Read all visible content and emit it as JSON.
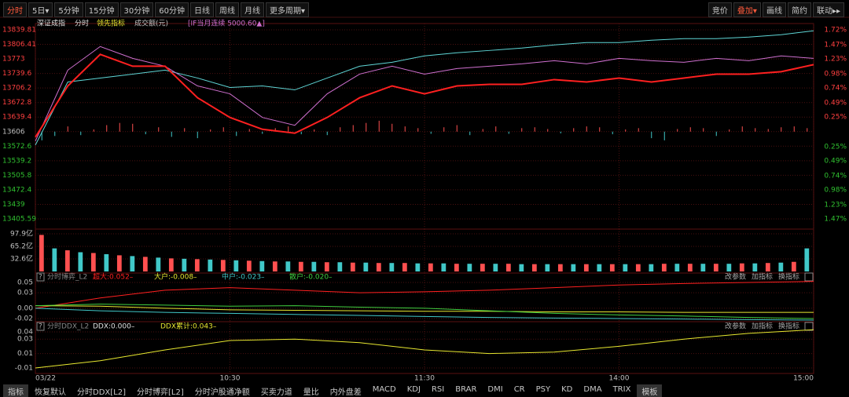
{
  "toolbar": {
    "left": [
      "分时",
      "5日▾",
      "5分钟",
      "15分钟",
      "30分钟",
      "60分钟",
      "日线",
      "周线",
      "月线",
      "更多周期▾"
    ],
    "right": [
      "竞价",
      "叠加▾",
      "画线",
      "简约",
      "联动▸▸"
    ]
  },
  "legend": [
    "深证成指",
    "分时",
    "领先指标",
    "成交额(元)",
    "[IF当月连续 5000.60▲]"
  ],
  "main": {
    "ylim": [
      13405.59,
      13839.81
    ],
    "yticks": [
      13839.81,
      13806.41,
      13773.0,
      13739.6,
      13706.2,
      13672.8,
      13639.4,
      13606.0,
      13572.6,
      13539.2,
      13505.8,
      13472.4,
      13439.0,
      13405.59
    ],
    "y2lim": [
      -1.47,
      1.72
    ],
    "y2ticks": [
      {
        "value": 1.72,
        "label": "1.72%"
      },
      {
        "value": 1.47,
        "label": "1.47%"
      },
      {
        "value": 1.23,
        "label": "1.23%"
      },
      {
        "value": 0.98,
        "label": "0.98%"
      },
      {
        "value": 0.74,
        "label": "0.74%"
      },
      {
        "value": 0.49,
        "label": "0.49%"
      },
      {
        "value": 0.25,
        "label": "0.25%"
      },
      {
        "value": -0.25,
        "label": "0.25%"
      },
      {
        "value": -0.49,
        "label": "0.49%"
      },
      {
        "value": -0.74,
        "label": "0.74%"
      },
      {
        "value": -0.98,
        "label": "0.98%"
      },
      {
        "value": -1.23,
        "label": "1.23%"
      },
      {
        "value": -1.47,
        "label": "1.47%"
      }
    ],
    "series": [
      {
        "color": "#5fd6d6",
        "width": 1,
        "values": [
          13575.2,
          13720.0,
          13729.1,
          13738.1,
          13747.2,
          13729.1,
          13707.4,
          13711.0,
          13701.9,
          13729.1,
          13756.2,
          13765.3,
          13779.8,
          13787.0,
          13792.4,
          13797.9,
          13805.1,
          13810.5,
          13810.5,
          13816.0,
          13819.6,
          13819.6,
          13823.2,
          13828.6,
          13837.6
        ]
      },
      {
        "color": "#d070d0",
        "width": 1,
        "values": [
          13584.3,
          13747.2,
          13801.5,
          13774.3,
          13756.2,
          13711.0,
          13692.9,
          13638.6,
          13620.5,
          13692.9,
          13738.1,
          13756.2,
          13738.1,
          13750.8,
          13756.2,
          13761.7,
          13768.9,
          13761.7,
          13774.3,
          13768.9,
          13765.3,
          13774.3,
          13768.9,
          13779.8,
          13774.3
        ]
      },
      {
        "color": "#ff2020",
        "width": 2,
        "values": [
          13593.3,
          13711.0,
          13783.4,
          13756.2,
          13756.2,
          13683.8,
          13638.6,
          13611.4,
          13602.4,
          13638.6,
          13683.8,
          13711.0,
          13692.9,
          13711.0,
          13714.6,
          13714.6,
          13725.5,
          13720.0,
          13729.1,
          13720.0,
          13729.1,
          13738.1,
          13738.1,
          13743.6,
          13759.9
        ]
      }
    ],
    "bars": [
      -20,
      -10,
      12,
      -8,
      5,
      15,
      20,
      18,
      -6,
      10,
      -12,
      8,
      -15,
      5,
      10,
      -10,
      6,
      -5,
      8,
      12,
      -6,
      5,
      -8,
      10,
      15,
      20,
      25,
      18,
      12,
      8,
      -5,
      10,
      15,
      -8,
      6,
      12,
      -5,
      8,
      10,
      6,
      -4,
      8,
      12,
      10,
      -6,
      5,
      8,
      -15,
      -20,
      6,
      10,
      8,
      -10,
      5,
      12,
      8,
      6,
      10,
      12,
      8
    ]
  },
  "volume": {
    "ylim": [
      0,
      97.9
    ],
    "yticks": [
      {
        "value": 97.9,
        "label": "97.9亿"
      },
      {
        "value": 65.2,
        "label": "65.2亿"
      },
      {
        "value": 32.6,
        "label": "32.6亿"
      }
    ],
    "values": [
      95,
      60,
      55,
      50,
      48,
      45,
      42,
      40,
      38,
      36,
      34,
      33,
      32,
      31,
      30,
      29,
      28,
      27,
      26,
      26,
      25,
      25,
      24,
      24,
      23,
      23,
      22,
      22,
      22,
      21,
      21,
      21,
      20,
      20,
      20,
      20,
      20,
      19,
      19,
      19,
      19,
      19,
      19,
      19,
      19,
      19,
      19,
      19,
      20,
      20,
      20,
      20,
      20,
      20,
      21,
      21,
      22,
      23,
      25,
      60
    ]
  },
  "game": {
    "title": "分时博弈_L2",
    "labels": [
      "超大:0.052–",
      "大户:-0.008–",
      "中户:-0.023–",
      "散户:-0.020–"
    ],
    "buttons": [
      "改参数",
      "加指标",
      "换指标"
    ],
    "ylim": [
      -0.02,
      0.05
    ],
    "yticks": [
      0.05,
      0.03,
      {
        "value": 0.0,
        "label": "0.00"
      },
      -0.02
    ],
    "series": [
      {
        "color": "#ff2020",
        "values": [
          0.0,
          0.02,
          0.035,
          0.04,
          0.035,
          0.03,
          0.032,
          0.035,
          0.04,
          0.045,
          0.048,
          0.05,
          0.052
        ]
      },
      {
        "color": "#e8e830",
        "values": [
          0.005,
          0.004,
          0.0,
          -0.003,
          -0.004,
          -0.005,
          -0.006,
          -0.006,
          -0.007,
          -0.007,
          -0.008,
          -0.008,
          -0.008
        ]
      },
      {
        "color": "#40c8c8",
        "values": [
          0.0,
          -0.005,
          -0.008,
          -0.01,
          -0.012,
          -0.014,
          -0.016,
          -0.018,
          -0.019,
          -0.02,
          -0.021,
          -0.022,
          -0.023
        ]
      },
      {
        "color": "#40d040",
        "values": [
          0.005,
          0.008,
          0.006,
          0.004,
          0.005,
          0.002,
          0.0,
          -0.005,
          -0.01,
          -0.013,
          -0.015,
          -0.018,
          -0.02
        ]
      }
    ]
  },
  "ddx": {
    "title": "分时DDX_L2",
    "labels": [
      "DDX:0.000–",
      "DDX累计:0.043–"
    ],
    "buttons": [
      "改参数",
      "加指标",
      "换指标"
    ],
    "ylim": [
      -0.01,
      0.04
    ],
    "yticks": [
      0.04,
      0.03,
      0.01,
      -0.01
    ],
    "series": [
      {
        "color": "#e8e830",
        "values": [
          -0.01,
          0.0,
          0.015,
          0.028,
          0.03,
          0.025,
          0.015,
          0.01,
          0.012,
          0.02,
          0.03,
          0.038,
          0.043
        ]
      }
    ]
  },
  "xaxis": [
    "03/22",
    "10:30",
    "11:30",
    "14:00",
    "15:00"
  ],
  "tabs": [
    "指标",
    "恢复默认",
    "分时DDX[L2]",
    "分时博弈[L2]",
    "分时沪股通净额",
    "买卖力道",
    "量比",
    "内外盘差",
    "MACD",
    "KDJ",
    "RSI",
    "BRAR",
    "DMI",
    "CR",
    "PSY",
    "KD",
    "DMA",
    "TRIX",
    "模板"
  ]
}
